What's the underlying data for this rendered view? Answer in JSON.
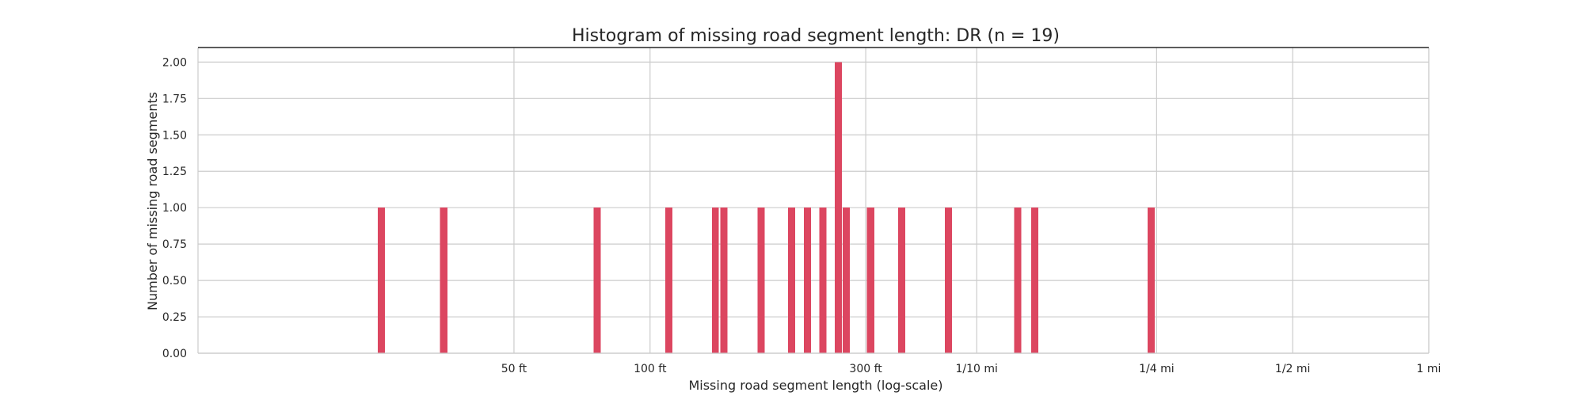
{
  "chart_data": {
    "type": "bar",
    "title": "Histogram of missing road segment length: DR (n = 19)",
    "xlabel": "Missing road segment  length (log-scale)",
    "ylabel": "Number of missing road segments",
    "x_scale": "log",
    "x_unit": "ft",
    "xlim": [
      10,
      5280
    ],
    "ylim": [
      0,
      2.1
    ],
    "grid": true,
    "bar_color": "#dc4660",
    "x_ticks": [
      {
        "value": 50,
        "label": "50 ft"
      },
      {
        "value": 100,
        "label": "100 ft"
      },
      {
        "value": 300,
        "label": "300 ft"
      },
      {
        "value": 528,
        "label": "1/10 mi"
      },
      {
        "value": 1320,
        "label": "1/4 mi"
      },
      {
        "value": 2640,
        "label": "1/2 mi"
      },
      {
        "value": 5280,
        "label": "1 mi"
      }
    ],
    "y_ticks": [
      {
        "value": 0,
        "label": "0.00"
      },
      {
        "value": 0.25,
        "label": "0.25"
      },
      {
        "value": 0.5,
        "label": "0.50"
      },
      {
        "value": 0.75,
        "label": "0.75"
      },
      {
        "value": 1.0,
        "label": "1.00"
      },
      {
        "value": 1.25,
        "label": "1.25"
      },
      {
        "value": 1.5,
        "label": "1.50"
      },
      {
        "value": 1.75,
        "label": "1.75"
      },
      {
        "value": 2.0,
        "label": "2.00"
      }
    ],
    "bins": [
      {
        "x_start": 25.0,
        "x_end": 25.9,
        "count": 1
      },
      {
        "x_start": 34.3,
        "x_end": 35.6,
        "count": 1
      },
      {
        "x_start": 75.0,
        "x_end": 77.8,
        "count": 1
      },
      {
        "x_start": 108.0,
        "x_end": 112.0,
        "count": 1
      },
      {
        "x_start": 137.0,
        "x_end": 142.0,
        "count": 1
      },
      {
        "x_start": 143.0,
        "x_end": 148.3,
        "count": 1
      },
      {
        "x_start": 173.0,
        "x_end": 179.4,
        "count": 1
      },
      {
        "x_start": 202.0,
        "x_end": 209.5,
        "count": 1
      },
      {
        "x_start": 219.0,
        "x_end": 227.1,
        "count": 1
      },
      {
        "x_start": 237.0,
        "x_end": 245.8,
        "count": 1
      },
      {
        "x_start": 256.0,
        "x_end": 265.5,
        "count": 2
      },
      {
        "x_start": 267.0,
        "x_end": 276.9,
        "count": 1
      },
      {
        "x_start": 302.0,
        "x_end": 313.2,
        "count": 1
      },
      {
        "x_start": 354.0,
        "x_end": 367.1,
        "count": 1
      },
      {
        "x_start": 449.0,
        "x_end": 465.7,
        "count": 1
      },
      {
        "x_start": 639.0,
        "x_end": 662.7,
        "count": 1
      },
      {
        "x_start": 697.0,
        "x_end": 722.9,
        "count": 1
      },
      {
        "x_start": 1261.0,
        "x_end": 1307.8,
        "count": 1
      }
    ]
  }
}
